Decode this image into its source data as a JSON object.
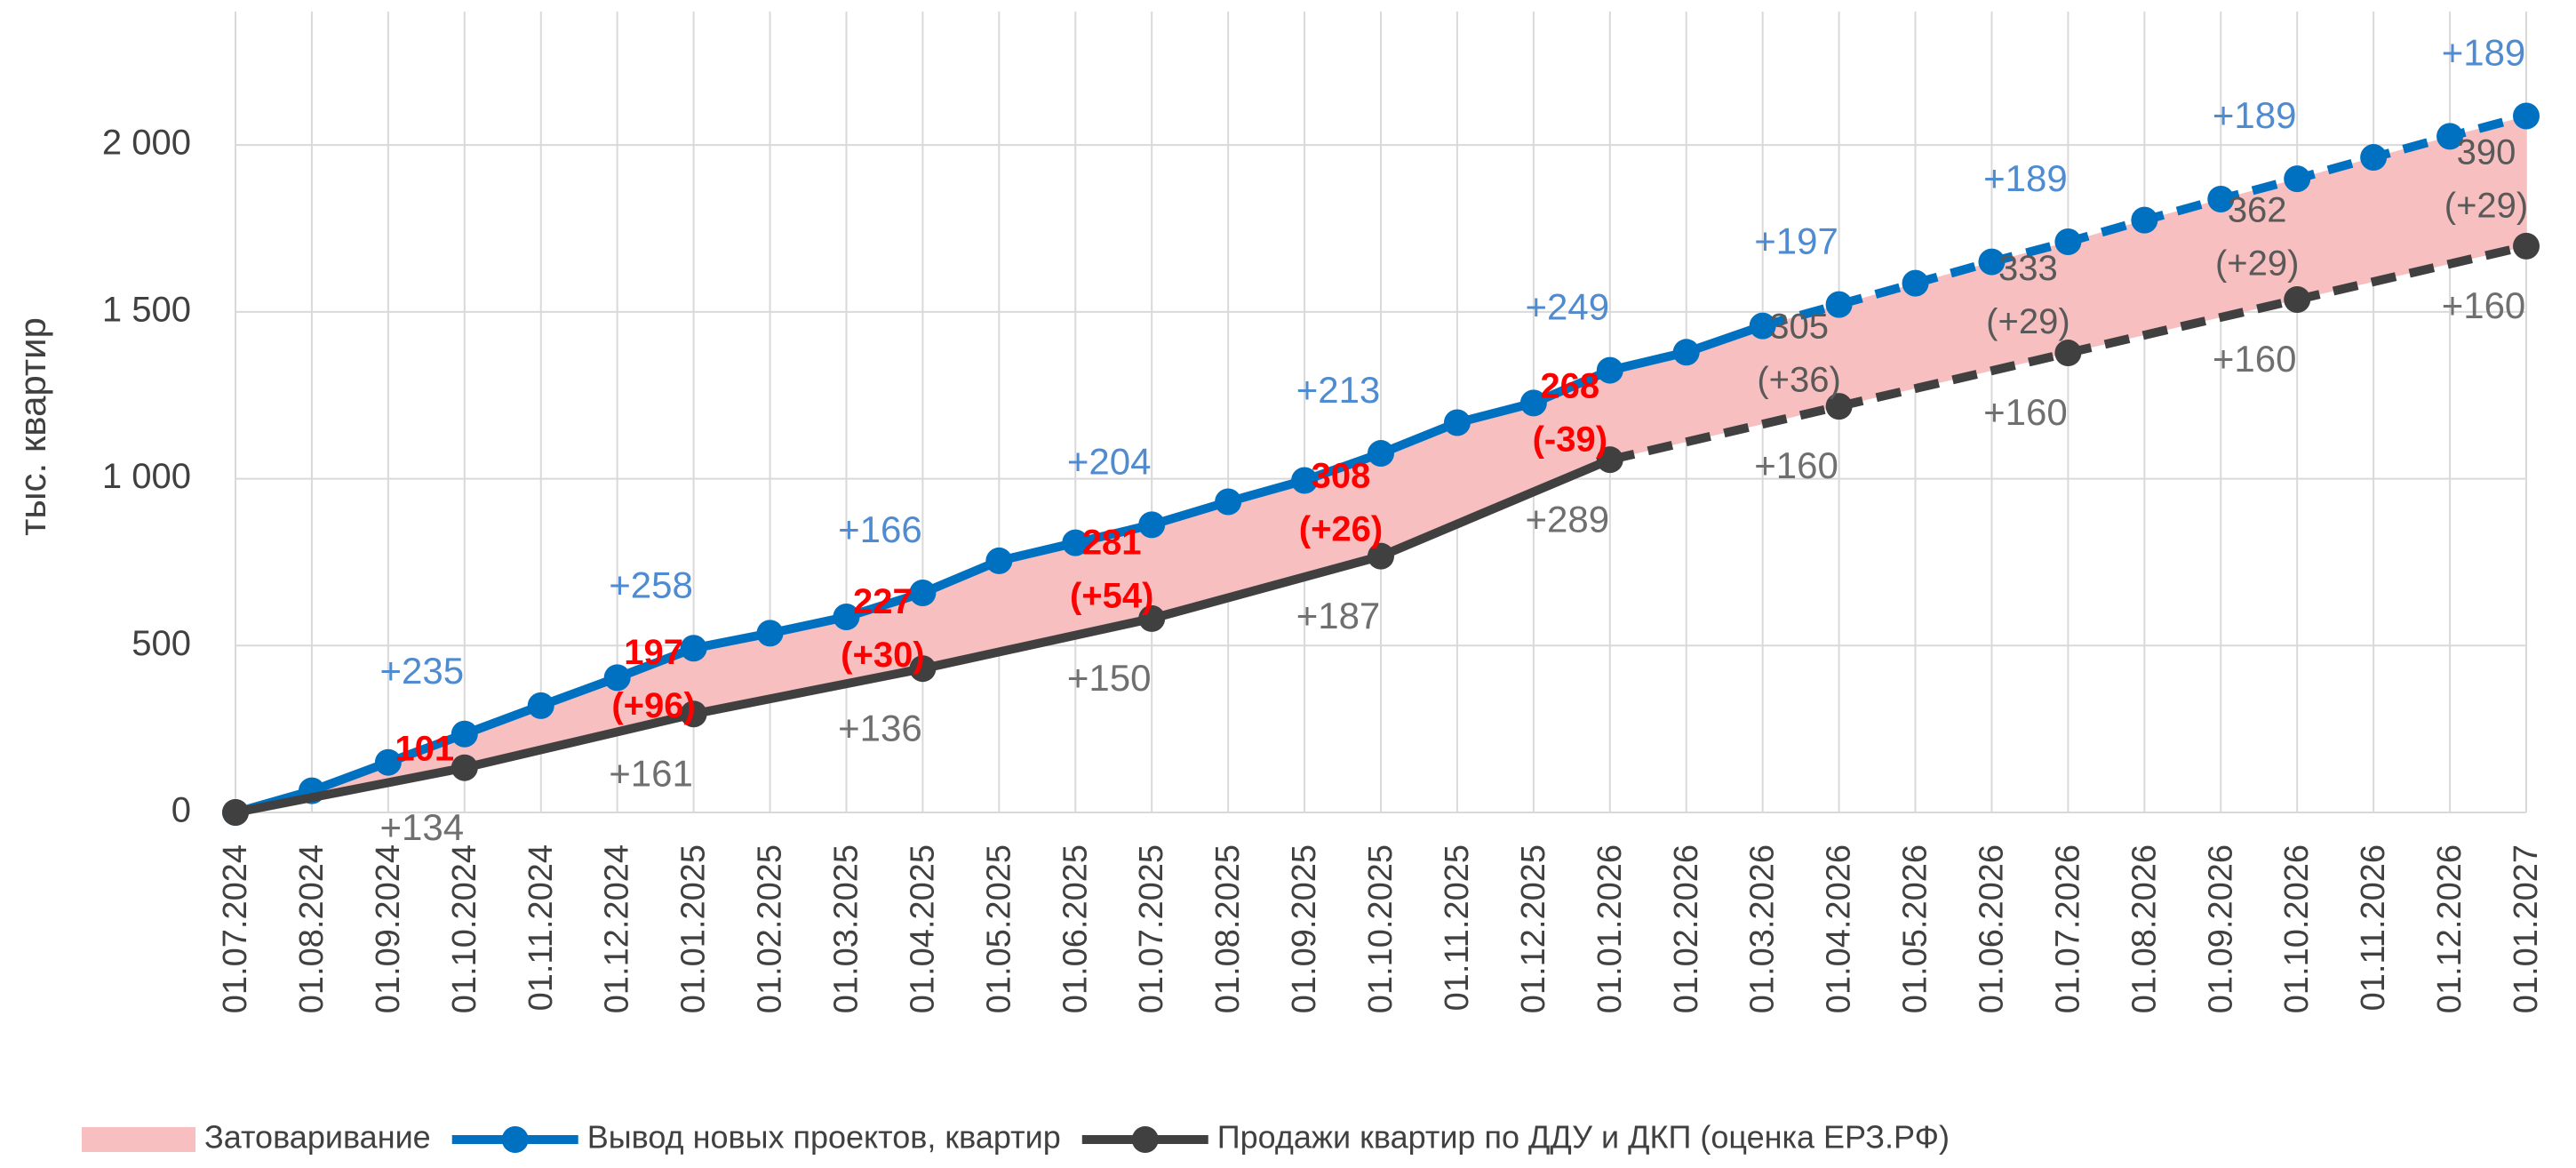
{
  "chart_data": {
    "type": "line",
    "y_label": "тыс. квартир",
    "categories": [
      "01.07.2024",
      "01.08.2024",
      "01.09.2024",
      "01.10.2024",
      "01.11.2024",
      "01.12.2024",
      "01.01.2025",
      "01.02.2025",
      "01.03.2025",
      "01.04.2025",
      "01.05.2025",
      "01.06.2025",
      "01.07.2025",
      "01.08.2025",
      "01.09.2025",
      "01.10.2025",
      "01.11.2025",
      "01.12.2025",
      "01.01.2026",
      "01.02.2026",
      "01.03.2026",
      "01.04.2026",
      "01.05.2026",
      "01.06.2026",
      "01.07.2026",
      "01.08.2026",
      "01.09.2026",
      "01.10.2026",
      "01.11.2026",
      "01.12.2026",
      "01.01.2027"
    ],
    "ylim": [
      0,
      2400
    ],
    "yticks": [
      0,
      500,
      {
        "value": 1000,
        "label": "1 000"
      },
      {
        "value": 1500,
        "label": "1 500"
      },
      {
        "value": 2000,
        "label": "2 000"
      }
    ],
    "grid": true,
    "fill": {
      "name": "Затоваривание",
      "color": "#f7bfbf"
    },
    "series": [
      {
        "name": "Вывод новых проектов, квартир",
        "color": "#0070c0",
        "label_color": "#4f8bd0",
        "dashed_from": 20,
        "values": [
          0,
          65,
          150,
          235,
          320,
          404,
          492,
          537,
          586,
          658,
          754,
          808,
          862,
          931,
          995,
          1076,
          1168,
          1227,
          1325,
          1379,
          1458,
          1522,
          1586,
          1650,
          1710,
          1775,
          1838,
          1899,
          1963,
          2026,
          2087
        ],
        "point_labels": [
          null,
          null,
          null,
          "+235",
          null,
          null,
          "+258",
          null,
          null,
          "+166",
          null,
          null,
          "+204",
          null,
          null,
          "+213",
          null,
          null,
          "+249",
          null,
          null,
          "+197",
          null,
          null,
          "+189",
          null,
          null,
          "+189",
          null,
          null,
          "+189"
        ]
      },
      {
        "name": "Продажи квартир по ДДУ и ДКП (оценка ЕРЗ.РФ)",
        "color": "#404040",
        "label_color": "#6f6f6f",
        "dashed_from": 18,
        "values": [
          0,
          null,
          null,
          134,
          null,
          null,
          295,
          null,
          null,
          431,
          null,
          null,
          581,
          null,
          null,
          768,
          null,
          null,
          1057,
          null,
          null,
          1217,
          null,
          null,
          1377,
          null,
          null,
          1537,
          null,
          null,
          1697
        ],
        "point_labels": [
          null,
          null,
          null,
          "+134",
          null,
          null,
          "+161",
          null,
          null,
          "+136",
          null,
          null,
          "+150",
          null,
          null,
          "+187",
          null,
          null,
          "+289",
          null,
          null,
          "+160",
          null,
          null,
          "+160",
          null,
          null,
          "+160",
          null,
          null,
          "+160"
        ]
      }
    ],
    "gap_labels": [
      null,
      null,
      null,
      {
        "lines": [
          "101"
        ],
        "color": "#ff0000",
        "bold": true
      },
      null,
      null,
      {
        "lines": [
          "197",
          "(+96)"
        ],
        "color": "#ff0000",
        "bold": true
      },
      null,
      null,
      {
        "lines": [
          "227",
          "(+30)"
        ],
        "color": "#ff0000",
        "bold": true
      },
      null,
      null,
      {
        "lines": [
          "281",
          "(+54)"
        ],
        "color": "#ff0000",
        "bold": true
      },
      null,
      null,
      {
        "lines": [
          "308",
          "(+26)"
        ],
        "color": "#ff0000",
        "bold": true
      },
      null,
      null,
      {
        "lines": [
          "268",
          "(-39)"
        ],
        "color": "#ff0000",
        "bold": true
      },
      null,
      null,
      {
        "lines": [
          "305",
          "(+36)"
        ],
        "color": "#595959",
        "bold": false
      },
      null,
      null,
      {
        "lines": [
          "333",
          "(+29)"
        ],
        "color": "#595959",
        "bold": false
      },
      null,
      null,
      {
        "lines": [
          "362",
          "(+29)"
        ],
        "color": "#595959",
        "bold": false
      },
      null,
      null,
      {
        "lines": [
          "390",
          "(+29)"
        ],
        "color": "#595959",
        "bold": false
      }
    ]
  }
}
